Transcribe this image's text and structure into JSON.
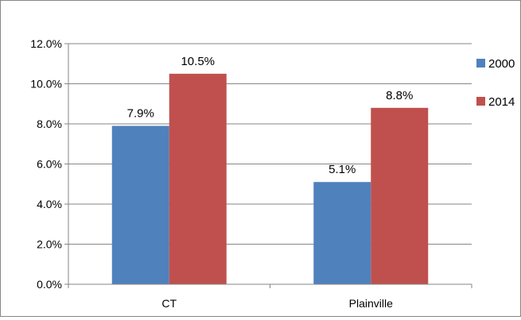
{
  "chart_data": {
    "type": "bar",
    "title": "",
    "xlabel": "",
    "ylabel": "",
    "categories": [
      "CT",
      "Plainville"
    ],
    "series": [
      {
        "name": "2000",
        "values": [
          7.9,
          5.1
        ],
        "color": "#4f81bd"
      },
      {
        "name": "2014",
        "values": [
          10.5,
          8.8
        ],
        "color": "#c0504d"
      }
    ],
    "data_labels": [
      [
        "7.9%",
        "5.1%"
      ],
      [
        "10.5%",
        "8.8%"
      ]
    ],
    "ylim": [
      0,
      12
    ],
    "yticks": [
      0,
      2,
      4,
      6,
      8,
      10,
      12
    ],
    "ytick_labels": [
      "0.0%",
      "2.0%",
      "4.0%",
      "6.0%",
      "8.0%",
      "10.0%",
      "12.0%"
    ],
    "grid": true,
    "legend_position": "right"
  }
}
